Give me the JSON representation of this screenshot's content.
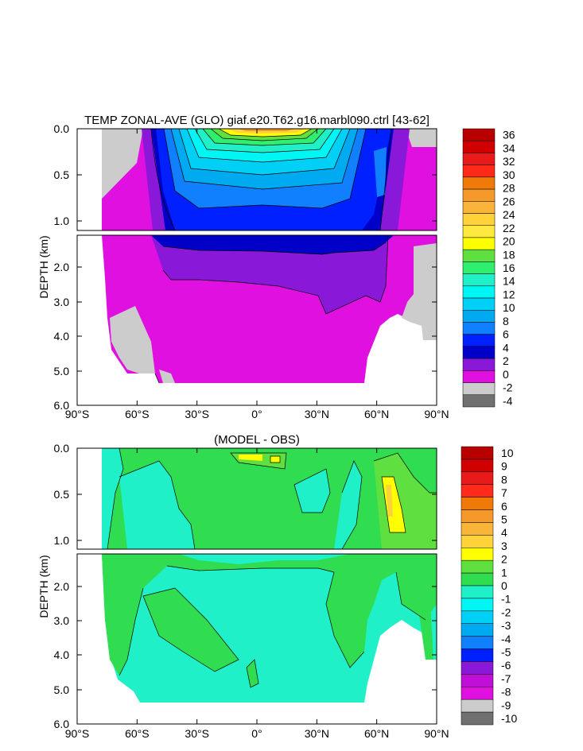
{
  "chart_data": [
    {
      "type": "heatmap",
      "title": "TEMP ZONAL-AVE (GLO) giaf.e20.T62.g16.marbl090.ctrl [43-62]",
      "ylabel": "DEPTH (km)",
      "x_ticks": [
        "90°S",
        "60°S",
        "30°S",
        "0°",
        "30°N",
        "60°N",
        "90°N"
      ],
      "y_ticks_top": [
        "0.0",
        "0.5",
        "1.0"
      ],
      "y_ticks_bottom": [
        "2.0",
        "3.0",
        "4.0",
        "5.0",
        "6.0"
      ],
      "xlim": [
        -90,
        90
      ],
      "ylim_km": [
        0,
        6
      ],
      "colorbar": {
        "labels": [
          "36",
          "34",
          "32",
          "30",
          "28",
          "26",
          "24",
          "22",
          "20",
          "18",
          "16",
          "14",
          "12",
          "10",
          "8",
          "6",
          "4",
          "2",
          "0",
          "-2",
          "-4"
        ],
        "colors": [
          "#b80000",
          "#d00000",
          "#e81a1a",
          "#ff2a1a",
          "#f07a08",
          "#f59a2a",
          "#f9b43a",
          "#ffd23a",
          "#ffe840",
          "#ffff00",
          "#60e040",
          "#30ee70",
          "#20f0c8",
          "#00f5f5",
          "#00d0f5",
          "#00aaf0",
          "#1080ff",
          "#0020ff",
          "#0000c8",
          "#8a18d8",
          "#e010e0",
          "#cccccc",
          "#707070"
        ]
      }
    },
    {
      "type": "heatmap",
      "title": "(MODEL - OBS)",
      "ylabel": "DEPTH (km)",
      "x_ticks": [
        "90°S",
        "60°S",
        "30°S",
        "0°",
        "30°N",
        "60°N",
        "90°N"
      ],
      "y_ticks_top": [
        "0.0",
        "0.5",
        "1.0"
      ],
      "y_ticks_bottom": [
        "2.0",
        "3.0",
        "4.0",
        "5.0",
        "6.0"
      ],
      "xlim": [
        -90,
        90
      ],
      "ylim_km": [
        0,
        6
      ],
      "colorbar": {
        "labels": [
          "10",
          "9",
          "8",
          "7",
          "6",
          "5",
          "4",
          "3",
          "2",
          "1",
          "0",
          "-1",
          "-2",
          "-3",
          "-4",
          "-5",
          "-6",
          "-7",
          "-8",
          "-9",
          "-10"
        ],
        "colors": [
          "#b80000",
          "#d00000",
          "#e81a1a",
          "#ff2a1a",
          "#f07a08",
          "#f59a2a",
          "#f9b43a",
          "#ffd23a",
          "#ffff00",
          "#60e040",
          "#30dc50",
          "#20f0c8",
          "#00f5f5",
          "#00d0f5",
          "#00aaf0",
          "#1080ff",
          "#0020ff",
          "#8a18d8",
          "#c010d8",
          "#e010e0",
          "#cccccc",
          "#707070"
        ]
      }
    }
  ]
}
